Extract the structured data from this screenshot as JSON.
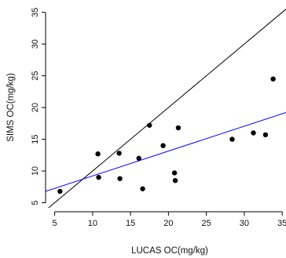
{
  "chart_data": {
    "type": "scatter",
    "title": "",
    "xlabel": "LUCAS OC(mg/kg)",
    "ylabel": "SIMS OC(mg/kg)",
    "xlim": [
      3.8,
      35.5
    ],
    "ylim": [
      4.2,
      36.2
    ],
    "x_ticks": [
      5,
      10,
      15,
      20,
      25,
      30,
      35
    ],
    "y_ticks": [
      5,
      10,
      15,
      20,
      25,
      30,
      35
    ],
    "x_tick_labels": [
      "5",
      "10",
      "15",
      "20",
      "25",
      "30",
      "35"
    ],
    "y_tick_labels": [
      "5",
      "10",
      "15",
      "20",
      "25",
      "30",
      "35"
    ],
    "grid": false,
    "points": [
      {
        "x": 5.7,
        "y": 6.8
      },
      {
        "x": 10.7,
        "y": 12.7
      },
      {
        "x": 10.8,
        "y": 9.0
      },
      {
        "x": 13.5,
        "y": 12.8
      },
      {
        "x": 13.6,
        "y": 8.8
      },
      {
        "x": 16.1,
        "y": 12.0
      },
      {
        "x": 16.6,
        "y": 7.2
      },
      {
        "x": 17.5,
        "y": 17.2
      },
      {
        "x": 19.3,
        "y": 14.0
      },
      {
        "x": 20.8,
        "y": 9.7
      },
      {
        "x": 20.9,
        "y": 8.5
      },
      {
        "x": 21.3,
        "y": 16.8
      },
      {
        "x": 28.4,
        "y": 15.0
      },
      {
        "x": 31.2,
        "y": 16.0
      },
      {
        "x": 32.8,
        "y": 15.7
      },
      {
        "x": 33.8,
        "y": 24.5
      }
    ],
    "lines": [
      {
        "kind": "identity",
        "color": "#000000",
        "slope": 1.0,
        "intercept": 0.0
      },
      {
        "kind": "regression",
        "color": "#0000ff",
        "slope": 0.392,
        "intercept": 5.3
      }
    ],
    "point_color": "#000000"
  }
}
